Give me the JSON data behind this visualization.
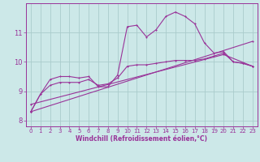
{
  "bg_color": "#cce8e8",
  "line_color": "#993399",
  "grid_color": "#aacccc",
  "xlabel": "Windchill (Refroidissement éolien,°C)",
  "xlabel_fontsize": 5.5,
  "tick_fontsize": 5,
  "xlim": [
    -0.5,
    23.5
  ],
  "ylim": [
    7.8,
    12.0
  ],
  "yticks": [
    8,
    9,
    10,
    11
  ],
  "xticks": [
    0,
    1,
    2,
    3,
    4,
    5,
    6,
    7,
    8,
    9,
    10,
    11,
    12,
    13,
    14,
    15,
    16,
    17,
    18,
    19,
    20,
    21,
    22,
    23
  ],
  "line1_x": [
    0,
    1,
    2,
    3,
    4,
    5,
    6,
    7,
    8,
    9,
    10,
    11,
    12,
    13,
    14,
    15,
    16,
    17,
    18,
    19,
    20,
    21,
    22,
    23
  ],
  "line1_y": [
    8.3,
    8.9,
    9.4,
    9.5,
    9.5,
    9.45,
    9.5,
    9.15,
    9.15,
    9.55,
    11.2,
    11.25,
    10.85,
    11.1,
    11.55,
    11.7,
    11.55,
    11.3,
    10.65,
    10.3,
    10.35,
    10.0,
    9.95,
    9.85
  ],
  "line2_x": [
    0,
    1,
    2,
    3,
    4,
    5,
    6,
    7,
    8,
    9,
    10,
    11,
    12,
    13,
    14,
    15,
    16,
    17,
    18,
    19,
    20,
    21,
    22,
    23
  ],
  "line2_y": [
    8.3,
    8.9,
    9.2,
    9.3,
    9.3,
    9.3,
    9.4,
    9.2,
    9.25,
    9.45,
    9.85,
    9.9,
    9.9,
    9.95,
    10.0,
    10.05,
    10.05,
    10.05,
    10.1,
    10.2,
    10.3,
    10.0,
    9.95,
    9.85
  ],
  "line3_x": [
    0,
    23
  ],
  "line3_y": [
    8.3,
    10.7
  ],
  "line4_x": [
    0,
    20,
    23
  ],
  "line4_y": [
    8.55,
    10.25,
    9.85
  ]
}
